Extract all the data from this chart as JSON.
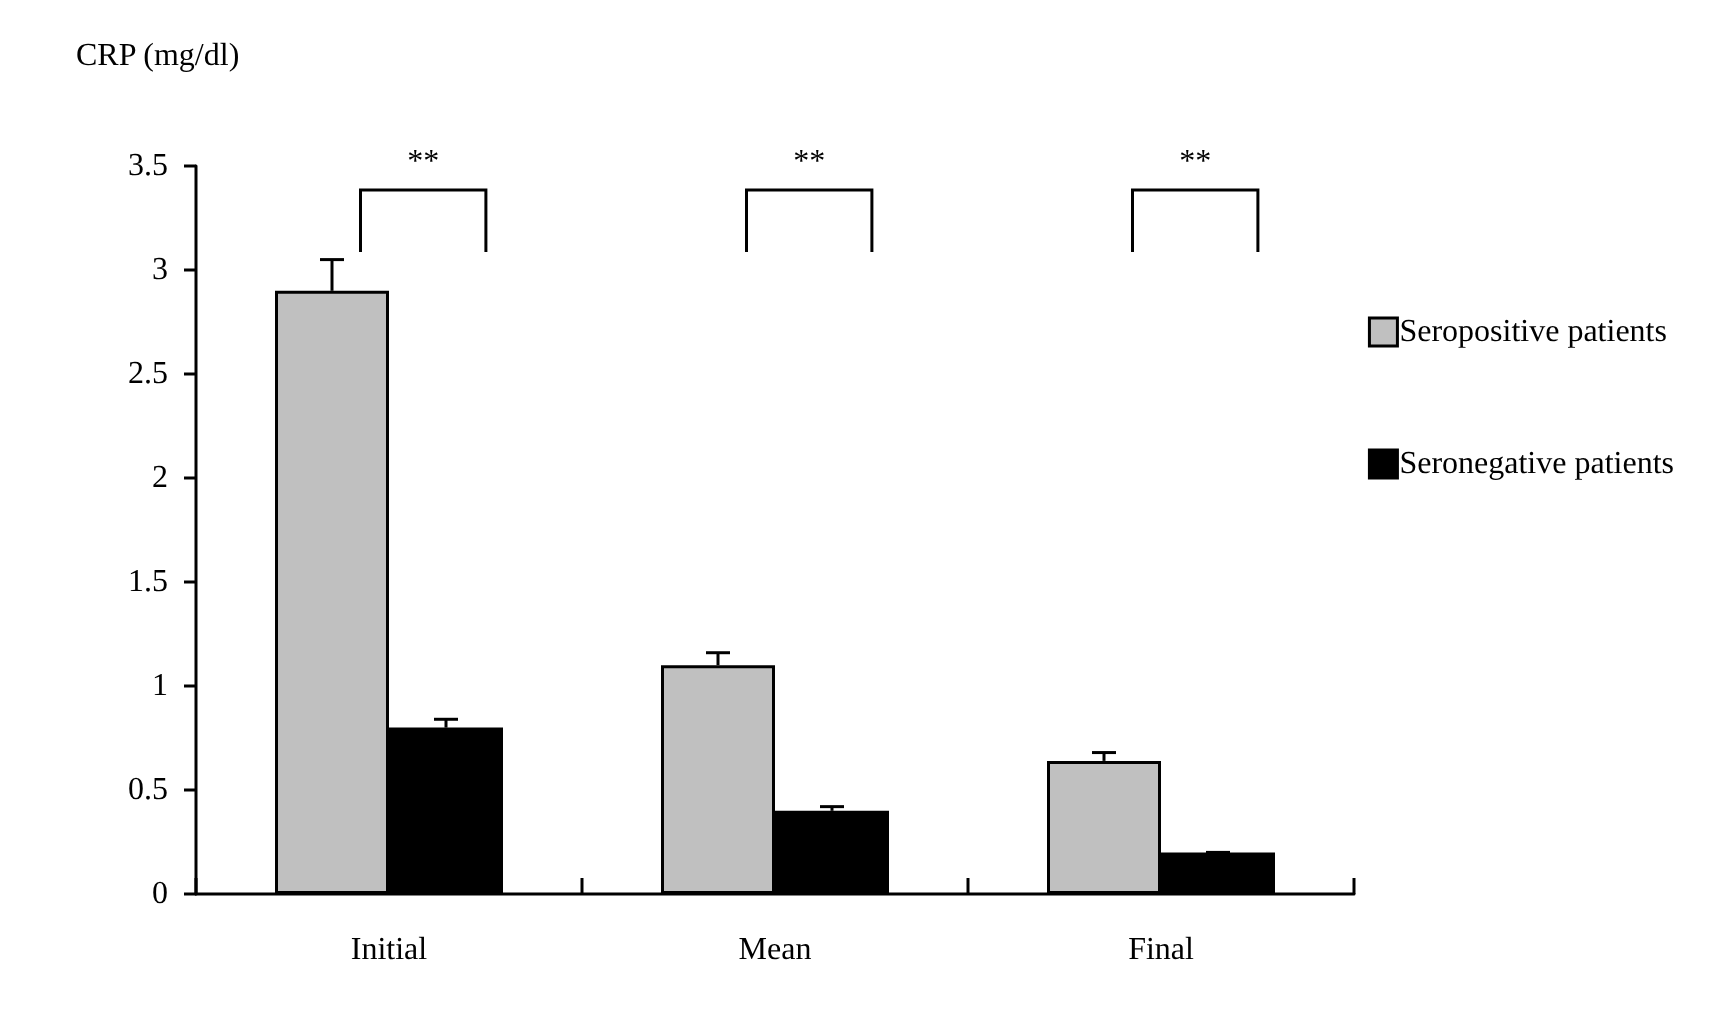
{
  "chart_data": {
    "type": "bar",
    "ylabel": "CRP (mg/dl)",
    "categories": [
      "Initial",
      "Mean",
      "Final"
    ],
    "series": [
      {
        "name": "Seropositive patients",
        "color": "#c0c0c0",
        "values": [
          2.9,
          1.1,
          0.64
        ],
        "errors": [
          [
            2.9,
            3.05
          ],
          [
            1.1,
            1.16
          ],
          [
            0.64,
            0.68
          ]
        ]
      },
      {
        "name": "Seronegative patients",
        "color": "#000000",
        "values": [
          0.8,
          0.4,
          0.2
        ],
        "errors": [
          [
            0.8,
            0.84
          ],
          [
            0.4,
            0.42
          ],
          [
            0.2,
            0.2
          ]
        ]
      }
    ],
    "ylim": [
      0,
      3.5
    ],
    "yticks": [
      0,
      0.5,
      1,
      1.5,
      2,
      2.5,
      3,
      3.5
    ],
    "grid": false,
    "legend": "right",
    "annotations": [
      "**",
      "**",
      "**"
    ]
  }
}
